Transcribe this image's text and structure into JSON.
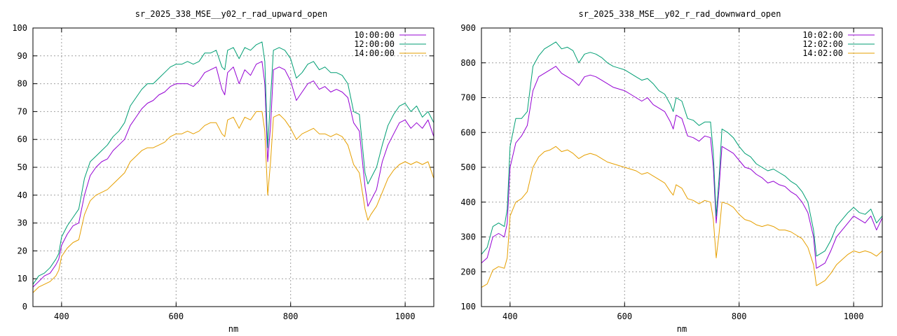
{
  "chart_data": [
    {
      "type": "line",
      "title": "sr_2025_338_MSE__y02_r_rad_upward_open",
      "xlabel": "nm",
      "ylabel": "",
      "xlim": [
        350,
        1050
      ],
      "ylim": [
        0,
        100
      ],
      "xticks": [
        400,
        600,
        800,
        1000
      ],
      "yticks": [
        0,
        10,
        20,
        30,
        40,
        50,
        60,
        70,
        80,
        90,
        100
      ],
      "grid": true,
      "legend_position": "top-right",
      "series": [
        {
          "name": "10:00:00",
          "color": "#9400d3",
          "x": [
            350,
            360,
            370,
            380,
            390,
            395,
            400,
            410,
            420,
            430,
            440,
            450,
            460,
            470,
            480,
            490,
            500,
            510,
            520,
            530,
            540,
            550,
            560,
            570,
            580,
            590,
            600,
            610,
            620,
            630,
            640,
            650,
            660,
            670,
            680,
            685,
            690,
            700,
            710,
            720,
            730,
            740,
            750,
            755,
            760,
            765,
            770,
            780,
            790,
            800,
            810,
            820,
            830,
            840,
            850,
            860,
            870,
            880,
            890,
            900,
            910,
            920,
            930,
            935,
            940,
            950,
            960,
            970,
            980,
            990,
            1000,
            1010,
            1020,
            1030,
            1040,
            1050
          ],
          "y": [
            7,
            9,
            11,
            12,
            15,
            17,
            22,
            26,
            29,
            30,
            40,
            47,
            50,
            52,
            53,
            56,
            58,
            60,
            65,
            68,
            71,
            73,
            74,
            76,
            77,
            79,
            80,
            80,
            80,
            79,
            81,
            84,
            85,
            86,
            78,
            76,
            84,
            86,
            80,
            85,
            83,
            87,
            88,
            80,
            52,
            65,
            85,
            86,
            85,
            81,
            74,
            77,
            80,
            81,
            78,
            79,
            77,
            78,
            77,
            75,
            66,
            63,
            43,
            36,
            38,
            42,
            52,
            58,
            62,
            66,
            67,
            64,
            66,
            64,
            67,
            61
          ]
        },
        {
          "name": "12:00:00",
          "color": "#009e73",
          "x": [
            350,
            360,
            370,
            380,
            390,
            395,
            400,
            410,
            420,
            430,
            440,
            450,
            460,
            470,
            480,
            490,
            500,
            510,
            520,
            530,
            540,
            550,
            560,
            570,
            580,
            590,
            600,
            610,
            620,
            630,
            640,
            650,
            660,
            670,
            680,
            685,
            690,
            700,
            710,
            720,
            730,
            740,
            750,
            755,
            760,
            765,
            770,
            780,
            790,
            800,
            810,
            820,
            830,
            840,
            850,
            860,
            870,
            880,
            890,
            900,
            910,
            920,
            930,
            935,
            940,
            950,
            960,
            970,
            980,
            990,
            1000,
            1010,
            1020,
            1030,
            1040,
            1050
          ],
          "y": [
            8,
            11,
            12,
            14,
            17,
            19,
            25,
            29,
            32,
            35,
            46,
            52,
            54,
            56,
            58,
            61,
            63,
            66,
            72,
            75,
            78,
            80,
            80,
            82,
            84,
            86,
            87,
            87,
            88,
            87,
            88,
            91,
            91,
            92,
            86,
            85,
            92,
            93,
            89,
            93,
            92,
            94,
            95,
            88,
            57,
            75,
            92,
            93,
            92,
            89,
            82,
            84,
            87,
            88,
            85,
            86,
            84,
            84,
            83,
            80,
            70,
            69,
            48,
            44,
            46,
            50,
            58,
            65,
            69,
            72,
            73,
            70,
            72,
            68,
            70,
            66
          ]
        },
        {
          "name": "14:00:00",
          "color": "#e69f00",
          "x": [
            350,
            360,
            370,
            380,
            390,
            395,
            400,
            410,
            420,
            430,
            440,
            450,
            460,
            470,
            480,
            490,
            500,
            510,
            520,
            530,
            540,
            550,
            560,
            570,
            580,
            590,
            600,
            610,
            620,
            630,
            640,
            650,
            660,
            670,
            680,
            685,
            690,
            700,
            710,
            720,
            730,
            740,
            750,
            755,
            760,
            765,
            770,
            780,
            790,
            800,
            810,
            820,
            830,
            840,
            850,
            860,
            870,
            880,
            890,
            900,
            910,
            920,
            930,
            935,
            940,
            950,
            960,
            970,
            980,
            990,
            1000,
            1010,
            1020,
            1030,
            1040,
            1050
          ],
          "y": [
            5,
            7,
            8,
            9,
            11,
            13,
            18,
            21,
            23,
            24,
            33,
            38,
            40,
            41,
            42,
            44,
            46,
            48,
            52,
            54,
            56,
            57,
            57,
            58,
            59,
            61,
            62,
            62,
            63,
            62,
            63,
            65,
            66,
            66,
            62,
            61,
            67,
            68,
            64,
            68,
            67,
            70,
            70,
            63,
            40,
            52,
            68,
            69,
            67,
            64,
            60,
            62,
            63,
            64,
            62,
            62,
            61,
            62,
            61,
            58,
            51,
            48,
            35,
            31,
            33,
            36,
            41,
            46,
            49,
            51,
            52,
            51,
            52,
            51,
            52,
            46
          ]
        }
      ]
    },
    {
      "type": "line",
      "title": "sr_2025_338_MSE__y02_r_rad_downward_open",
      "xlabel": "nm",
      "ylabel": "",
      "xlim": [
        350,
        1050
      ],
      "ylim": [
        100,
        900
      ],
      "xticks": [
        400,
        600,
        800,
        1000
      ],
      "yticks": [
        100,
        200,
        300,
        400,
        500,
        600,
        700,
        800,
        900
      ],
      "grid": true,
      "legend_position": "top-right",
      "series": [
        {
          "name": "10:02:00",
          "color": "#9400d3",
          "x": [
            350,
            360,
            370,
            380,
            390,
            395,
            400,
            410,
            420,
            430,
            440,
            450,
            460,
            470,
            480,
            490,
            500,
            510,
            520,
            530,
            540,
            550,
            560,
            570,
            580,
            590,
            600,
            610,
            620,
            630,
            640,
            650,
            660,
            670,
            680,
            685,
            690,
            700,
            710,
            720,
            730,
            740,
            750,
            755,
            760,
            765,
            770,
            780,
            790,
            800,
            810,
            820,
            830,
            840,
            850,
            860,
            870,
            880,
            890,
            900,
            910,
            920,
            930,
            935,
            940,
            950,
            960,
            970,
            980,
            990,
            1000,
            1010,
            1020,
            1030,
            1040,
            1050
          ],
          "y": [
            225,
            240,
            300,
            310,
            300,
            340,
            500,
            570,
            590,
            620,
            720,
            760,
            770,
            780,
            790,
            770,
            760,
            750,
            735,
            760,
            765,
            760,
            750,
            740,
            730,
            725,
            720,
            710,
            700,
            690,
            700,
            680,
            670,
            660,
            630,
            610,
            650,
            640,
            590,
            585,
            575,
            590,
            585,
            500,
            340,
            440,
            560,
            550,
            540,
            520,
            500,
            495,
            480,
            470,
            455,
            460,
            450,
            445,
            430,
            420,
            400,
            370,
            300,
            210,
            215,
            225,
            260,
            300,
            320,
            340,
            360,
            350,
            340,
            360,
            320,
            355
          ]
        },
        {
          "name": "12:02:00",
          "color": "#009e73",
          "x": [
            350,
            360,
            370,
            380,
            390,
            395,
            400,
            410,
            420,
            430,
            440,
            450,
            460,
            470,
            480,
            490,
            500,
            510,
            520,
            530,
            540,
            550,
            560,
            570,
            580,
            590,
            600,
            610,
            620,
            630,
            640,
            650,
            660,
            670,
            680,
            685,
            690,
            700,
            710,
            720,
            730,
            740,
            750,
            755,
            760,
            765,
            770,
            780,
            790,
            800,
            810,
            820,
            830,
            840,
            850,
            860,
            870,
            880,
            890,
            900,
            910,
            920,
            930,
            935,
            940,
            950,
            960,
            970,
            980,
            990,
            1000,
            1010,
            1020,
            1030,
            1040,
            1050
          ],
          "y": [
            250,
            270,
            330,
            340,
            330,
            380,
            560,
            640,
            640,
            660,
            790,
            820,
            840,
            850,
            860,
            840,
            845,
            835,
            800,
            825,
            830,
            825,
            815,
            800,
            790,
            785,
            780,
            770,
            760,
            750,
            755,
            740,
            720,
            710,
            680,
            660,
            700,
            690,
            640,
            635,
            620,
            630,
            630,
            540,
            360,
            470,
            610,
            600,
            585,
            560,
            540,
            530,
            510,
            500,
            490,
            495,
            485,
            475,
            460,
            450,
            430,
            400,
            320,
            245,
            250,
            260,
            290,
            330,
            350,
            370,
            385,
            370,
            365,
            380,
            340,
            360
          ]
        },
        {
          "name": "14:02:00",
          "color": "#e69f00",
          "x": [
            350,
            360,
            370,
            380,
            390,
            395,
            400,
            410,
            420,
            430,
            440,
            450,
            460,
            470,
            480,
            490,
            500,
            510,
            520,
            530,
            540,
            550,
            560,
            570,
            580,
            590,
            600,
            610,
            620,
            630,
            640,
            650,
            660,
            670,
            680,
            685,
            690,
            700,
            710,
            720,
            730,
            740,
            750,
            755,
            760,
            765,
            770,
            780,
            790,
            800,
            810,
            820,
            830,
            840,
            850,
            860,
            870,
            880,
            890,
            900,
            910,
            920,
            930,
            935,
            940,
            950,
            960,
            970,
            980,
            990,
            1000,
            1010,
            1020,
            1030,
            1040,
            1050
          ],
          "y": [
            155,
            165,
            205,
            215,
            210,
            240,
            360,
            400,
            410,
            430,
            500,
            530,
            545,
            550,
            560,
            545,
            550,
            540,
            525,
            535,
            540,
            535,
            525,
            515,
            510,
            505,
            500,
            495,
            490,
            480,
            485,
            475,
            465,
            455,
            430,
            420,
            450,
            440,
            410,
            405,
            395,
            405,
            400,
            350,
            240,
            310,
            400,
            395,
            385,
            365,
            350,
            345,
            335,
            330,
            335,
            330,
            320,
            320,
            315,
            305,
            295,
            270,
            220,
            160,
            165,
            175,
            195,
            220,
            235,
            250,
            260,
            255,
            260,
            255,
            245,
            260
          ]
        }
      ]
    }
  ]
}
